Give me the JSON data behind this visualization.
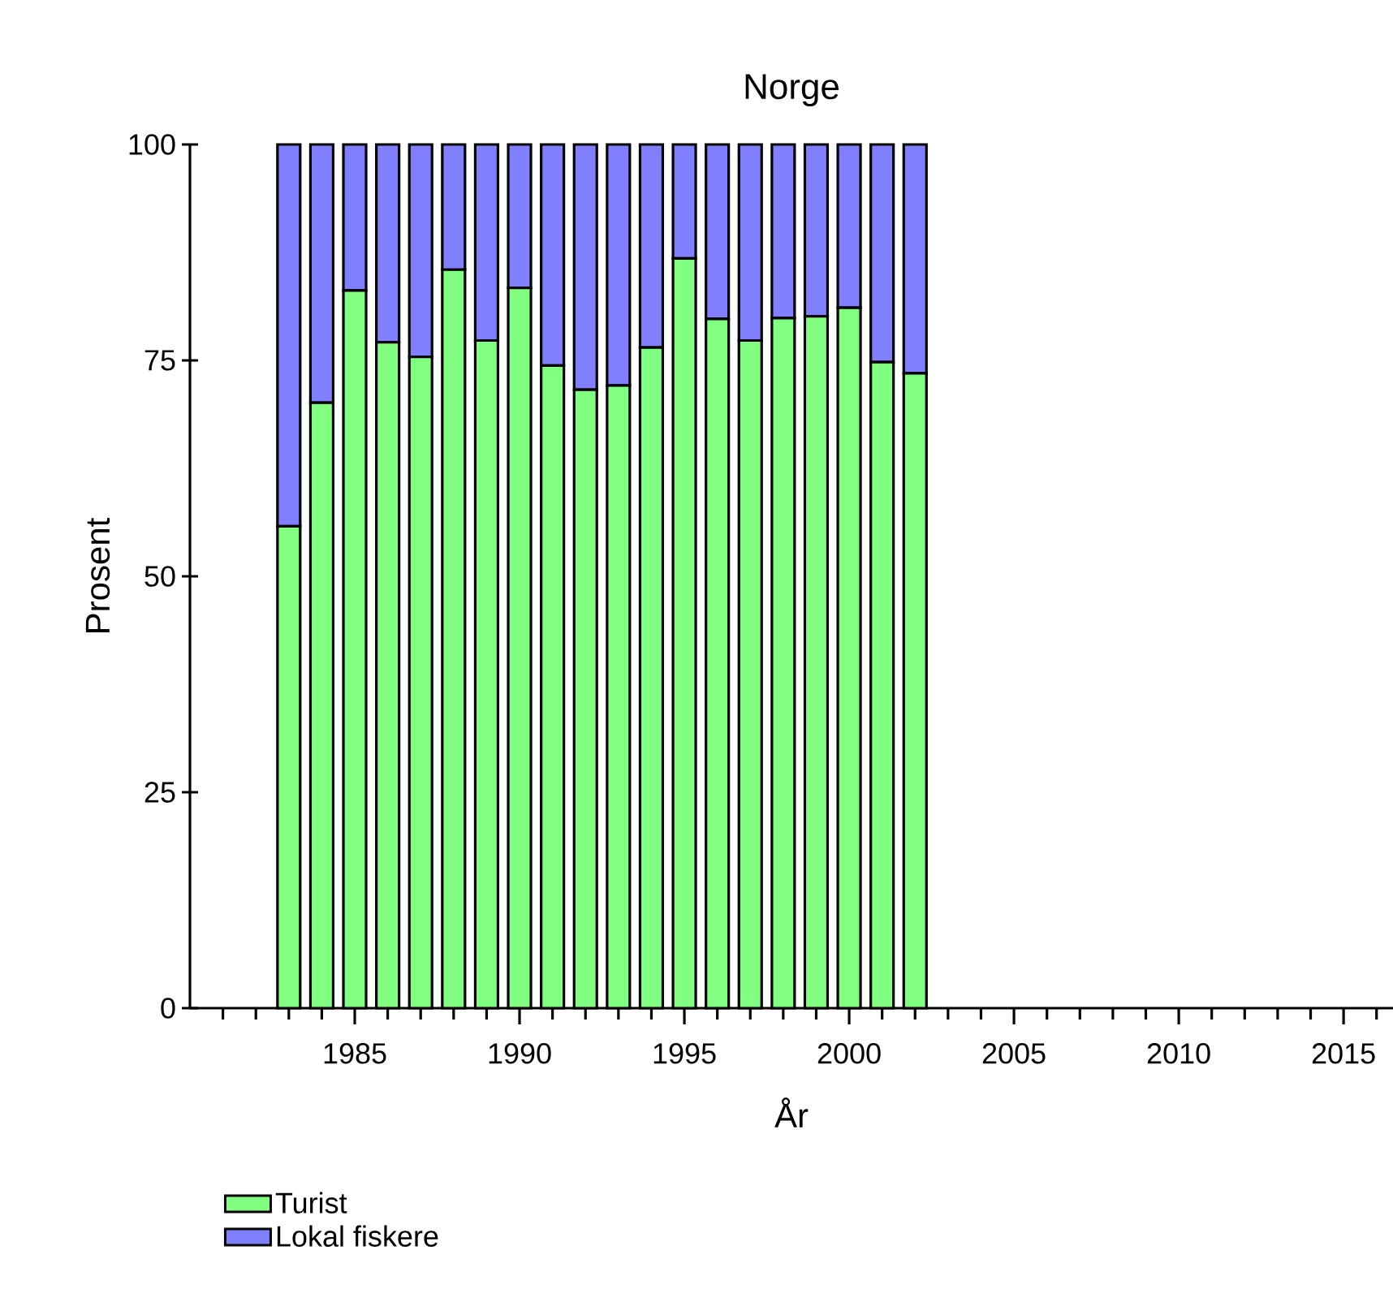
{
  "chart_data": {
    "type": "bar",
    "stacked": true,
    "title": "Norge",
    "xlabel": "År",
    "ylabel": "Prosent",
    "x": [
      1983,
      1984,
      1985,
      1986,
      1987,
      1988,
      1989,
      1990,
      1991,
      1992,
      1993,
      1994,
      1995,
      1996,
      1997,
      1998,
      1999,
      2000,
      2001,
      2002
    ],
    "series": [
      {
        "name": "Turist",
        "color": "#80ff80",
        "values": [
          55.8,
          70.1,
          83.1,
          77.1,
          75.4,
          85.5,
          77.3,
          83.4,
          74.4,
          71.6,
          72.1,
          76.5,
          86.8,
          79.8,
          77.3,
          79.9,
          80.1,
          81.1,
          74.8,
          73.5
        ]
      },
      {
        "name": "Lokal fiskere",
        "color": "#8080ff",
        "values": [
          44.2,
          29.9,
          16.9,
          22.9,
          24.6,
          14.5,
          22.7,
          16.6,
          25.6,
          28.4,
          27.9,
          23.5,
          13.2,
          20.2,
          22.7,
          20.1,
          19.9,
          18.9,
          25.2,
          26.5
        ]
      }
    ],
    "xlim": [
      1980,
      2016.5
    ],
    "xticks": [
      {
        "value": 1981,
        "label": null
      },
      {
        "value": 1982,
        "label": null
      },
      {
        "value": 1983,
        "label": null
      },
      {
        "value": 1984,
        "label": null
      },
      1985,
      {
        "value": 1986,
        "label": null
      },
      {
        "value": 1987,
        "label": null
      },
      {
        "value": 1988,
        "label": null
      },
      {
        "value": 1989,
        "label": null
      },
      1990,
      {
        "value": 1991,
        "label": null
      },
      {
        "value": 1992,
        "label": null
      },
      {
        "value": 1993,
        "label": null
      },
      {
        "value": 1994,
        "label": null
      },
      1995,
      {
        "value": 1996,
        "label": null
      },
      {
        "value": 1997,
        "label": null
      },
      {
        "value": 1998,
        "label": null
      },
      {
        "value": 1999,
        "label": null
      },
      2000,
      {
        "value": 2001,
        "label": null
      },
      {
        "value": 2002,
        "label": null
      },
      {
        "value": 2003,
        "label": null
      },
      {
        "value": 2004,
        "label": null
      },
      2005,
      {
        "value": 2006,
        "label": null
      },
      {
        "value": 2007,
        "label": null
      },
      {
        "value": 2008,
        "label": null
      },
      {
        "value": 2009,
        "label": null
      },
      2010,
      {
        "value": 2011,
        "label": null
      },
      {
        "value": 2012,
        "label": null
      },
      {
        "value": 2013,
        "label": null
      },
      {
        "value": 2014,
        "label": null
      },
      2015,
      {
        "value": 2016,
        "label": null
      }
    ],
    "ylim": [
      0,
      100
    ],
    "yticks": [
      0,
      25,
      50,
      75,
      100
    ],
    "legend": "bottom left"
  }
}
